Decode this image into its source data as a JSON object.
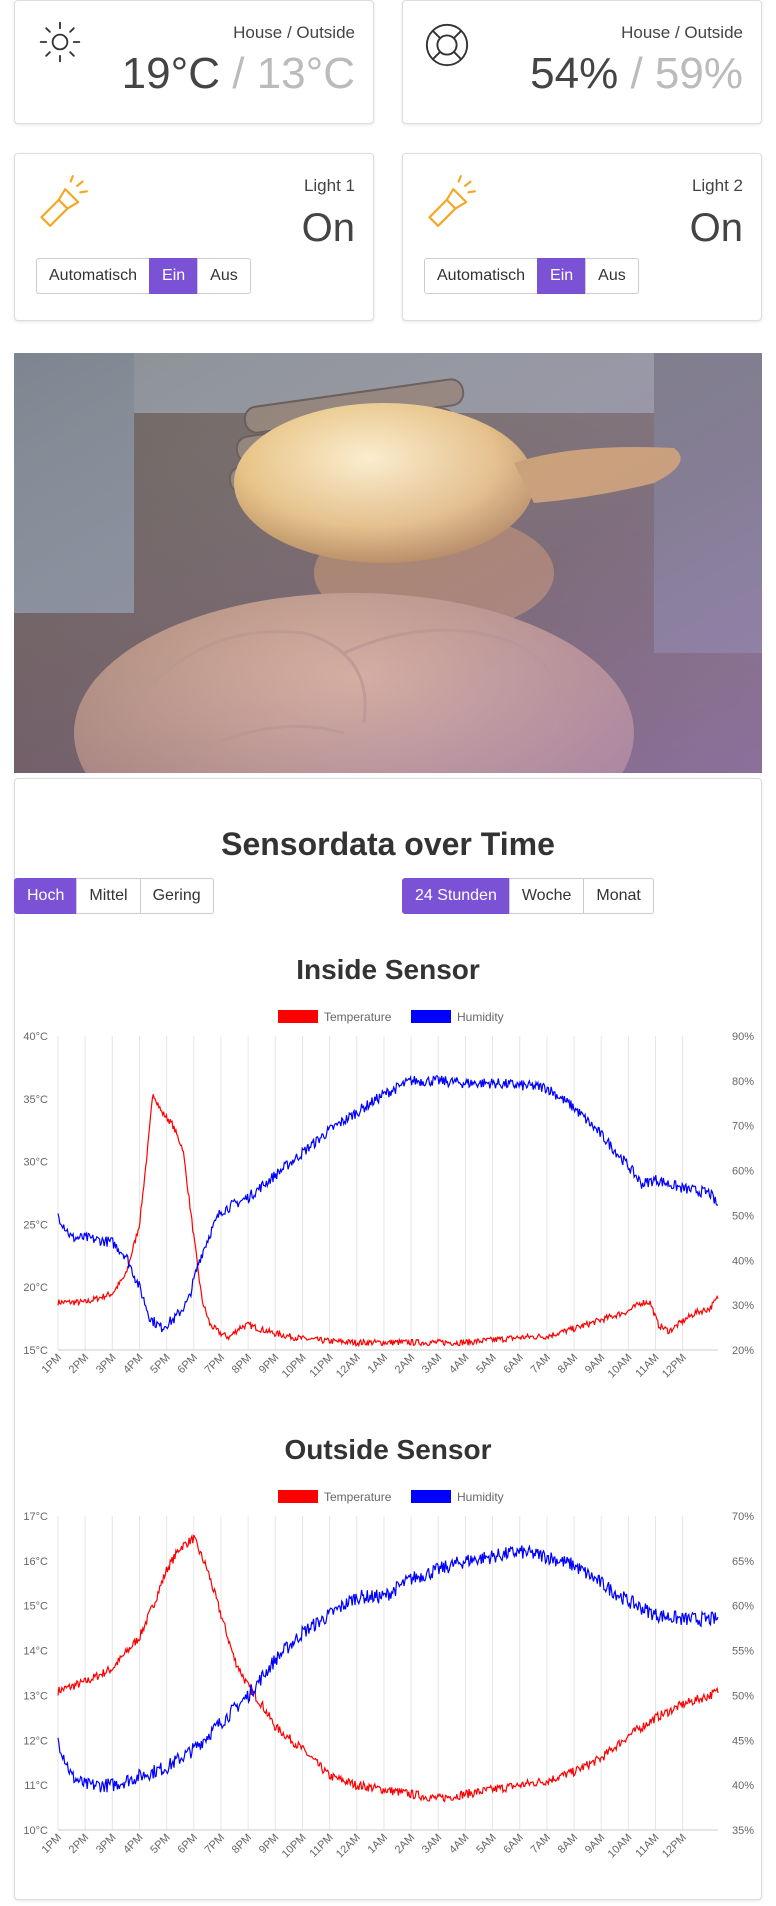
{
  "status_cards": [
    {
      "label": "House / Outside",
      "inside": "19°C",
      "separator": "/",
      "outside": "13°C",
      "icon": "sun-icon"
    },
    {
      "label": "House / Outside",
      "inside": "54%",
      "separator": "/",
      "outside": "59%",
      "icon": "lifebuoy-icon"
    }
  ],
  "light_cards": [
    {
      "label": "Light 1",
      "state": "On",
      "icon": "flashlight-icon",
      "modes": [
        "Automatisch",
        "Ein",
        "Aus"
      ],
      "active_mode": "Ein"
    },
    {
      "label": "Light 2",
      "state": "On",
      "icon": "flashlight-icon",
      "modes": [
        "Automatisch",
        "Ein",
        "Aus"
      ],
      "active_mode": "Ein"
    }
  ],
  "camera": {
    "icon": "camera-feed-image"
  },
  "sensor_section": {
    "title": "Sensordata over Time",
    "resolution_buttons": [
      "Hoch",
      "Mittel",
      "Gering"
    ],
    "active_resolution": "Hoch",
    "range_buttons": [
      "24 Stunden",
      "Woche",
      "Monat"
    ],
    "active_range": "24 Stunden"
  },
  "colors": {
    "accent": "#7b52d6",
    "temperature": "#ff0000",
    "humidity": "#0000ff",
    "icon_orange": "#f5a623"
  },
  "chart_data": [
    {
      "type": "line",
      "title": "Inside Sensor",
      "legend": [
        "Temperature",
        "Humidity"
      ],
      "legend_position": "top",
      "grid": true,
      "x": [
        "1PM",
        "2PM",
        "3PM",
        "4PM",
        "5PM",
        "6PM",
        "7PM",
        "8PM",
        "9PM",
        "10PM",
        "11PM",
        "12AM",
        "1AM",
        "2AM",
        "3AM",
        "4AM",
        "5AM",
        "6AM",
        "7AM",
        "8AM",
        "9AM",
        "10AM",
        "11AM",
        "12PM"
      ],
      "y_left": {
        "ticks": [
          "15°C",
          "20°C",
          "25°C",
          "30°C",
          "35°C",
          "40°C"
        ],
        "range": [
          15,
          40
        ]
      },
      "y_right": {
        "ticks": [
          "20%",
          "30%",
          "40%",
          "50%",
          "60%",
          "70%",
          "80%",
          "90%"
        ],
        "range": [
          20,
          90
        ]
      },
      "series": [
        {
          "name": "Temperature",
          "axis": "left",
          "noise": 0.25,
          "points": [
            [
              0,
              18.8
            ],
            [
              1,
              18.8
            ],
            [
              2,
              19.5
            ],
            [
              2.5,
              21
            ],
            [
              3,
              25
            ],
            [
              3.3,
              31
            ],
            [
              3.5,
              35.5
            ],
            [
              3.8,
              34
            ],
            [
              4.2,
              33
            ],
            [
              4.6,
              31
            ],
            [
              5,
              24
            ],
            [
              5.3,
              19
            ],
            [
              5.6,
              17
            ],
            [
              6,
              16.3
            ],
            [
              6.3,
              16
            ],
            [
              6.7,
              16.8
            ],
            [
              7,
              17
            ],
            [
              7.4,
              16.7
            ],
            [
              8,
              16.3
            ],
            [
              9,
              15.9
            ],
            [
              10,
              15.7
            ],
            [
              11,
              15.6
            ],
            [
              12,
              15.6
            ],
            [
              13,
              15.6
            ],
            [
              14,
              15.6
            ],
            [
              15,
              15.6
            ],
            [
              16,
              15.8
            ],
            [
              17,
              16
            ],
            [
              18,
              16.1
            ],
            [
              19,
              16.7
            ],
            [
              20,
              17.4
            ],
            [
              21,
              18.1
            ],
            [
              21.5,
              18.8
            ],
            [
              21.8,
              18.8
            ],
            [
              22.1,
              17
            ],
            [
              22.5,
              16.5
            ],
            [
              23,
              17.3
            ],
            [
              23.5,
              18
            ],
            [
              24,
              18.3
            ],
            [
              24.3,
              19.2
            ]
          ]
        },
        {
          "name": "Humidity",
          "axis": "right",
          "noise": 1.2,
          "points": [
            [
              0,
              50
            ],
            [
              0.5,
              45
            ],
            [
              1,
              45
            ],
            [
              2,
              44
            ],
            [
              2.5,
              41
            ],
            [
              3,
              34
            ],
            [
              3.4,
              27
            ],
            [
              3.8,
              25
            ],
            [
              4.3,
              27
            ],
            [
              4.8,
              31
            ],
            [
              5.2,
              40
            ],
            [
              5.6,
              46
            ],
            [
              6,
              51
            ],
            [
              7,
              54
            ],
            [
              8,
              59
            ],
            [
              9,
              64
            ],
            [
              10,
              69
            ],
            [
              11,
              73
            ],
            [
              12,
              77
            ],
            [
              13,
              80
            ],
            [
              14,
              80
            ],
            [
              15,
              79.5
            ],
            [
              16,
              79.5
            ],
            [
              17,
              79
            ],
            [
              18,
              78.5
            ],
            [
              19,
              74
            ],
            [
              20,
              68
            ],
            [
              21,
              61
            ],
            [
              21.5,
              57
            ],
            [
              22,
              58
            ],
            [
              23,
              56
            ],
            [
              24,
              55
            ],
            [
              24.3,
              52
            ]
          ]
        }
      ]
    },
    {
      "type": "line",
      "title": "Outside Sensor",
      "legend": [
        "Temperature",
        "Humidity"
      ],
      "legend_position": "top",
      "grid": true,
      "x": [
        "1PM",
        "2PM",
        "3PM",
        "4PM",
        "5PM",
        "6PM",
        "7PM",
        "8PM",
        "9PM",
        "10PM",
        "11PM",
        "12AM",
        "1AM",
        "2AM",
        "3AM",
        "4AM",
        "5AM",
        "6AM",
        "7AM",
        "8AM",
        "9AM",
        "10AM",
        "11AM",
        "12PM"
      ],
      "y_left": {
        "ticks": [
          "10°C",
          "11°C",
          "12°C",
          "13°C",
          "14°C",
          "15°C",
          "16°C",
          "17°C"
        ],
        "range": [
          10,
          17
        ]
      },
      "y_right": {
        "ticks": [
          "35%",
          "40%",
          "45%",
          "50%",
          "55%",
          "60%",
          "65%",
          "70%"
        ],
        "range": [
          35,
          70
        ]
      },
      "series": [
        {
          "name": "Temperature",
          "axis": "left",
          "noise": 0.1,
          "points": [
            [
              0,
              13.1
            ],
            [
              1,
              13.3
            ],
            [
              2,
              13.6
            ],
            [
              3,
              14.3
            ],
            [
              3.5,
              15
            ],
            [
              4,
              15.8
            ],
            [
              4.5,
              16.3
            ],
            [
              5,
              16.5
            ],
            [
              5.5,
              15.8
            ],
            [
              6,
              14.8
            ],
            [
              6.5,
              13.8
            ],
            [
              7,
              13.2
            ],
            [
              7.5,
              12.8
            ],
            [
              8,
              12.3
            ],
            [
              9,
              11.8
            ],
            [
              10,
              11.2
            ],
            [
              11,
              11
            ],
            [
              12,
              10.9
            ],
            [
              13,
              10.8
            ],
            [
              14,
              10.7
            ],
            [
              15,
              10.8
            ],
            [
              16,
              10.9
            ],
            [
              17,
              11
            ],
            [
              18,
              11.1
            ],
            [
              19,
              11.3
            ],
            [
              20,
              11.6
            ],
            [
              21,
              12.1
            ],
            [
              22,
              12.5
            ],
            [
              23,
              12.8
            ],
            [
              24,
              13
            ],
            [
              24.3,
              13.1
            ]
          ]
        },
        {
          "name": "Humidity",
          "axis": "right",
          "noise": 0.8,
          "points": [
            [
              0,
              45
            ],
            [
              0.5,
              41
            ],
            [
              1,
              40
            ],
            [
              2,
              40
            ],
            [
              3,
              41
            ],
            [
              4,
              42
            ],
            [
              5,
              44
            ],
            [
              6,
              47
            ],
            [
              7,
              50
            ],
            [
              8,
              54
            ],
            [
              9,
              57
            ],
            [
              10,
              59
            ],
            [
              11,
              61
            ],
            [
              12,
              61
            ],
            [
              13,
              63
            ],
            [
              14,
              64
            ],
            [
              15,
              65
            ],
            [
              16,
              65.5
            ],
            [
              17,
              66
            ],
            [
              18,
              65.5
            ],
            [
              19,
              64.5
            ],
            [
              20,
              62.5
            ],
            [
              21,
              60.5
            ],
            [
              22,
              59
            ],
            [
              23,
              58.5
            ],
            [
              24,
              58.5
            ],
            [
              24.3,
              58.5
            ]
          ]
        }
      ]
    }
  ]
}
